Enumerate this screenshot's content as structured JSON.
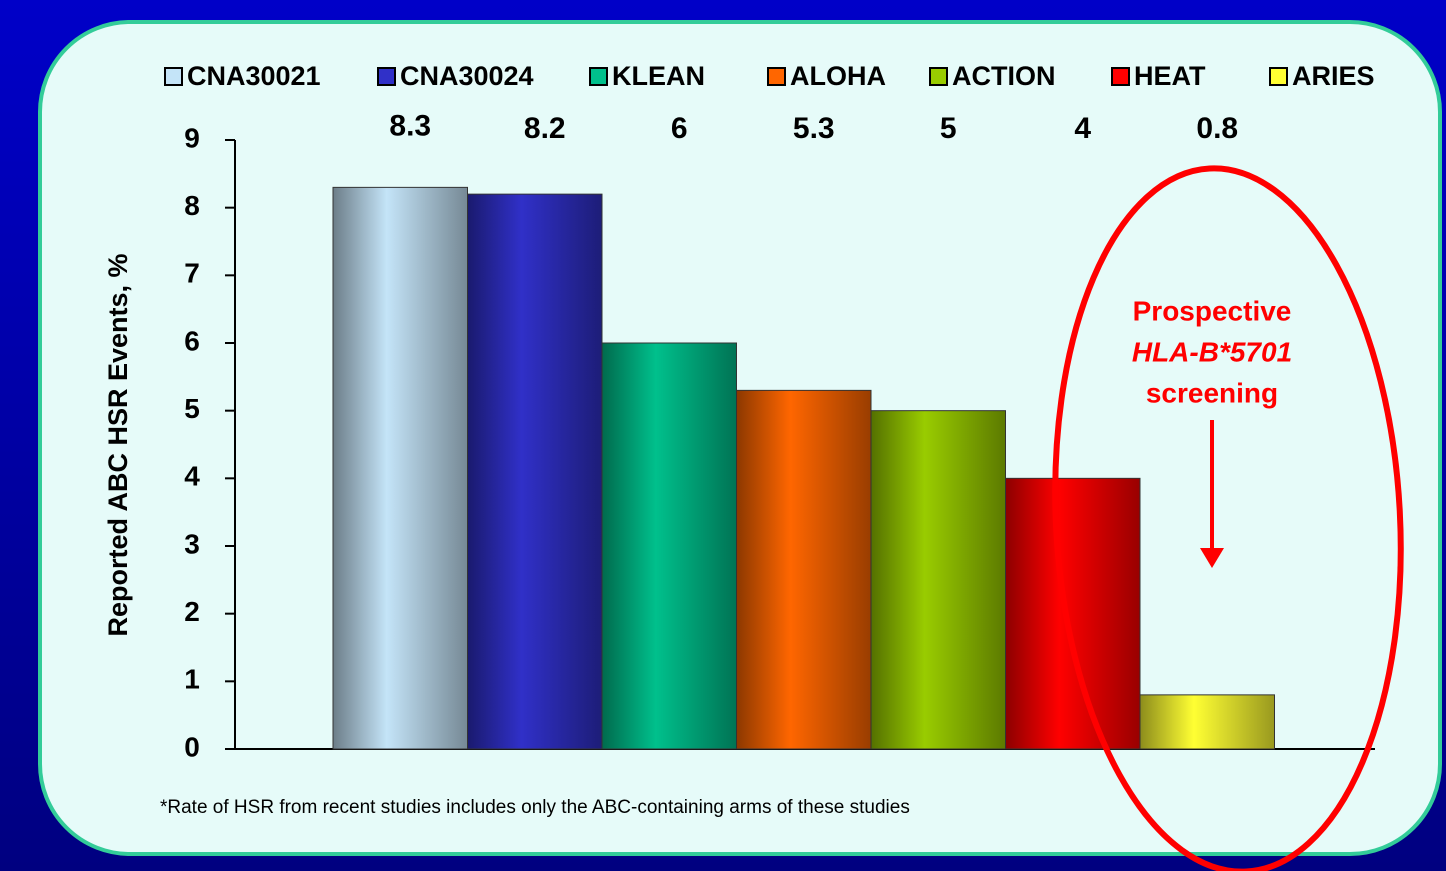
{
  "chart_data": {
    "type": "bar",
    "categories": [
      "CNA30021",
      "CNA30024",
      "KLEAN",
      "ALOHA",
      "ACTION",
      "HEAT",
      "ARIES"
    ],
    "values": [
      8.3,
      8.2,
      6,
      5.3,
      5,
      4,
      0.8
    ],
    "colors": [
      "#c4e4f8",
      "#3030c8",
      "#00c08c",
      "#ff6600",
      "#99cc00",
      "#ff0000",
      "#ffff33"
    ],
    "y_label": "Reported ABC HSR Events, %",
    "ylim": [
      0,
      9
    ],
    "yticks": [
      0,
      1,
      2,
      3,
      4,
      5,
      6,
      7,
      8,
      9
    ],
    "legend": "top",
    "annotation": [
      "Prospective",
      "HLA-B*5701",
      "screening"
    ],
    "footnote": "*Rate of HSR from recent studies includes only the ABC-containing arms of these studies"
  }
}
